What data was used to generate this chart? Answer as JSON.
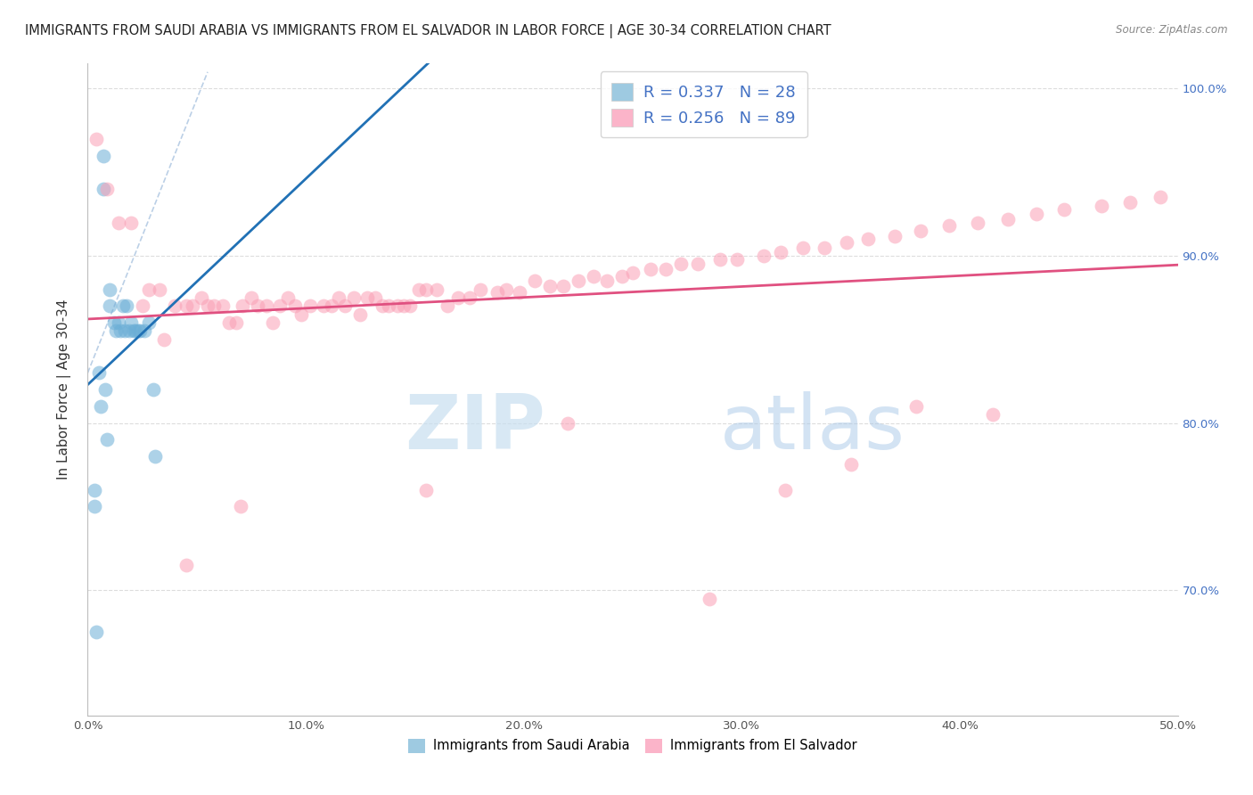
{
  "title": "IMMIGRANTS FROM SAUDI ARABIA VS IMMIGRANTS FROM EL SALVADOR IN LABOR FORCE | AGE 30-34 CORRELATION CHART",
  "source": "Source: ZipAtlas.com",
  "ylabel": "In Labor Force | Age 30-34",
  "xmin": 0.0,
  "xmax": 0.5,
  "ymin": 0.625,
  "ymax": 1.015,
  "yticks": [
    0.7,
    0.8,
    0.9,
    1.0
  ],
  "ytick_labels": [
    "70.0%",
    "80.0%",
    "90.0%",
    "100.0%"
  ],
  "xticks": [
    0.0,
    0.1,
    0.2,
    0.3,
    0.4,
    0.5
  ],
  "xtick_labels": [
    "0.0%",
    "10.0%",
    "20.0%",
    "30.0%",
    "40.0%",
    "50.0%"
  ],
  "blue_color": "#6baed6",
  "pink_color": "#fa9fb5",
  "blue_line_color": "#2171b5",
  "pink_line_color": "#e05080",
  "legend_blue_color": "#9ecae1",
  "legend_pink_color": "#fbb4c9",
  "R_blue": 0.337,
  "N_blue": 28,
  "R_pink": 0.256,
  "N_pink": 89,
  "blue_scatter_x": [
    0.004,
    0.007,
    0.007,
    0.01,
    0.01,
    0.012,
    0.014,
    0.015,
    0.016,
    0.018,
    0.019,
    0.02,
    0.021,
    0.022,
    0.023,
    0.024,
    0.026,
    0.028,
    0.03,
    0.031,
    0.003,
    0.005,
    0.008,
    0.013,
    0.003,
    0.006,
    0.009,
    0.017
  ],
  "blue_scatter_y": [
    0.675,
    0.94,
    0.96,
    0.88,
    0.87,
    0.86,
    0.86,
    0.855,
    0.87,
    0.87,
    0.855,
    0.86,
    0.855,
    0.855,
    0.855,
    0.855,
    0.855,
    0.86,
    0.82,
    0.78,
    0.75,
    0.83,
    0.82,
    0.855,
    0.76,
    0.81,
    0.79,
    0.855
  ],
  "pink_scatter_x": [
    0.004,
    0.009,
    0.014,
    0.02,
    0.025,
    0.028,
    0.033,
    0.035,
    0.04,
    0.045,
    0.048,
    0.052,
    0.055,
    0.058,
    0.062,
    0.065,
    0.068,
    0.071,
    0.075,
    0.078,
    0.082,
    0.085,
    0.088,
    0.092,
    0.095,
    0.098,
    0.102,
    0.108,
    0.112,
    0.115,
    0.118,
    0.122,
    0.125,
    0.128,
    0.132,
    0.135,
    0.138,
    0.142,
    0.145,
    0.148,
    0.152,
    0.155,
    0.16,
    0.165,
    0.17,
    0.175,
    0.18,
    0.188,
    0.192,
    0.198,
    0.205,
    0.212,
    0.218,
    0.225,
    0.232,
    0.238,
    0.245,
    0.25,
    0.258,
    0.265,
    0.272,
    0.28,
    0.29,
    0.298,
    0.31,
    0.318,
    0.328,
    0.338,
    0.348,
    0.358,
    0.37,
    0.382,
    0.395,
    0.408,
    0.422,
    0.435,
    0.448,
    0.465,
    0.478,
    0.492,
    0.155,
    0.22,
    0.285,
    0.32,
    0.35,
    0.38,
    0.415,
    0.045,
    0.07
  ],
  "pink_scatter_y": [
    0.97,
    0.94,
    0.92,
    0.92,
    0.87,
    0.88,
    0.88,
    0.85,
    0.87,
    0.87,
    0.87,
    0.875,
    0.87,
    0.87,
    0.87,
    0.86,
    0.86,
    0.87,
    0.875,
    0.87,
    0.87,
    0.86,
    0.87,
    0.875,
    0.87,
    0.865,
    0.87,
    0.87,
    0.87,
    0.875,
    0.87,
    0.875,
    0.865,
    0.875,
    0.875,
    0.87,
    0.87,
    0.87,
    0.87,
    0.87,
    0.88,
    0.88,
    0.88,
    0.87,
    0.875,
    0.875,
    0.88,
    0.878,
    0.88,
    0.878,
    0.885,
    0.882,
    0.882,
    0.885,
    0.888,
    0.885,
    0.888,
    0.89,
    0.892,
    0.892,
    0.895,
    0.895,
    0.898,
    0.898,
    0.9,
    0.902,
    0.905,
    0.905,
    0.908,
    0.91,
    0.912,
    0.915,
    0.918,
    0.92,
    0.922,
    0.925,
    0.928,
    0.93,
    0.932,
    0.935,
    0.76,
    0.8,
    0.695,
    0.76,
    0.775,
    0.81,
    0.805,
    0.715,
    0.75
  ],
  "watermark_zip": "ZIP",
  "watermark_atlas": "atlas",
  "grid_color": "#dddddd",
  "background_color": "#ffffff",
  "right_axis_color": "#4472c4",
  "title_fontsize": 10.5,
  "axis_label_fontsize": 11,
  "tick_fontsize": 9.5
}
